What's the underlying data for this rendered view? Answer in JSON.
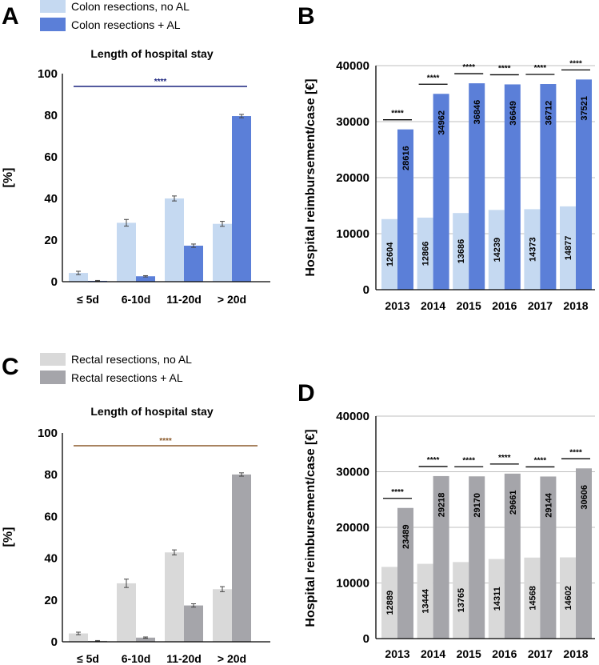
{
  "figure": {
    "panels": [
      "A",
      "B",
      "C",
      "D"
    ]
  },
  "chart_data": [
    {
      "id": "A",
      "type": "bar",
      "title": "Length of hospital stay",
      "ylabel": "[%]",
      "xlabel": "",
      "ylim": [
        0,
        100
      ],
      "yticks": [
        0,
        20,
        40,
        60,
        80,
        100
      ],
      "categories": [
        "≤ 5d",
        "6-10d",
        "11-20d",
        "> 20d"
      ],
      "series": [
        {
          "name": "Colon resections, no AL",
          "color": "#c5d9f1",
          "values": [
            4.2,
            28.3,
            40.0,
            27.8
          ],
          "errors": [
            0.8,
            1.6,
            1.2,
            1.2
          ]
        },
        {
          "name": "Colon resections + AL",
          "color": "#5b7fd8",
          "values": [
            0.4,
            2.6,
            17.3,
            79.6
          ],
          "errors": [
            0.2,
            0.3,
            0.8,
            0.8
          ]
        }
      ],
      "significance": {
        "label": "****",
        "color": "#1a237e"
      }
    },
    {
      "id": "B",
      "type": "bar",
      "title": "",
      "ylabel": "Hospital reimbursement/case [€]",
      "xlabel": "",
      "ylim": [
        0,
        40000
      ],
      "yticks": [
        0,
        10000,
        20000,
        30000,
        40000
      ],
      "categories": [
        "2013",
        "2014",
        "2015",
        "2016",
        "2017",
        "2018"
      ],
      "series": [
        {
          "name": "Colon resections, no AL",
          "color": "#c5d9f1",
          "values": [
            12604,
            12866,
            13686,
            14239,
            14373,
            14877
          ]
        },
        {
          "name": "Colon resections + AL",
          "color": "#5b7fd8",
          "values": [
            28616,
            34962,
            36846,
            36649,
            36712,
            37521
          ]
        }
      ],
      "significance": {
        "label": "****",
        "color": "#000000"
      }
    },
    {
      "id": "C",
      "type": "bar",
      "title": "Length of hospital stay",
      "ylabel": "[%]",
      "xlabel": "",
      "ylim": [
        0,
        100
      ],
      "yticks": [
        0,
        20,
        40,
        60,
        80,
        100
      ],
      "categories": [
        "≤ 5d",
        "6-10d",
        "11-20d",
        "> 20d"
      ],
      "series": [
        {
          "name": "Rectal resections, no AL",
          "color": "#d9d9d9",
          "values": [
            4.0,
            28.0,
            42.8,
            25.2
          ],
          "errors": [
            0.6,
            2.0,
            1.2,
            1.2
          ]
        },
        {
          "name": "Rectal resections + AL",
          "color": "#a5a5aa",
          "values": [
            0.4,
            2.0,
            17.4,
            80.1
          ],
          "errors": [
            0.2,
            0.3,
            0.8,
            0.8
          ]
        }
      ],
      "significance": {
        "label": "****",
        "color": "#8b5a2b"
      }
    },
    {
      "id": "D",
      "type": "bar",
      "title": "",
      "ylabel": "Hospital reimbursement/case [€]",
      "xlabel": "",
      "ylim": [
        0,
        40000
      ],
      "yticks": [
        0,
        10000,
        20000,
        30000,
        40000
      ],
      "categories": [
        "2013",
        "2014",
        "2015",
        "2016",
        "2017",
        "2018"
      ],
      "series": [
        {
          "name": "Rectal resections, no AL",
          "color": "#d9d9d9",
          "values": [
            12889,
            13444,
            13765,
            14311,
            14568,
            14602
          ]
        },
        {
          "name": "Rectal resections + AL",
          "color": "#a5a5aa",
          "values": [
            23489,
            29218,
            29170,
            29661,
            29144,
            30606
          ]
        }
      ],
      "significance": {
        "label": "****",
        "color": "#000000"
      }
    }
  ]
}
